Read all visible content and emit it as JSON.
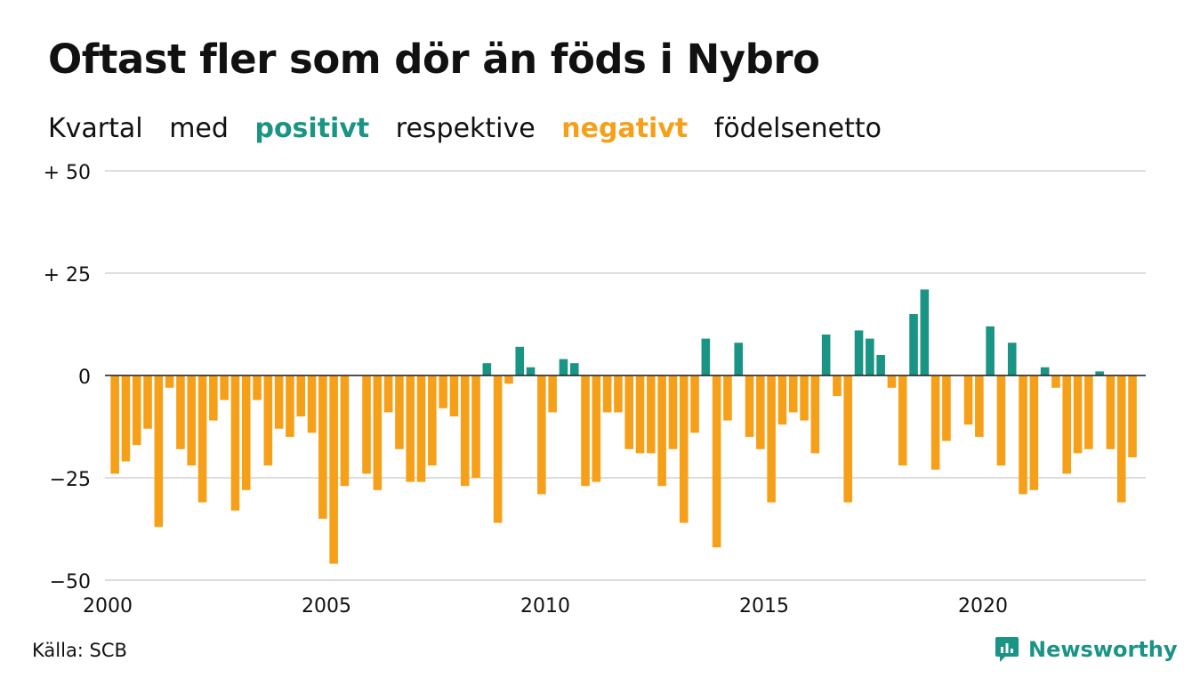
{
  "header": {
    "title": "Oftast fler som dör än föds i Nybro",
    "subtitle_words": [
      "Kvartal",
      "med",
      "positivt",
      "respektive",
      "negativt",
      "födelsenetto"
    ]
  },
  "footer": {
    "source": "Källa: SCB",
    "brand": "Newsworthy",
    "brand_icon": "newsworthy-chart-icon"
  },
  "colors": {
    "positive": "#1a9484",
    "negative": "#f6a01a",
    "grid": "#dddddd",
    "text": "#111111"
  },
  "chart_data": {
    "type": "bar",
    "title": "Oftast fler som dör än föds i Nybro",
    "subtitle": "Kvartal med positivt respektive negativt födelsenetto",
    "xlabel": "",
    "ylabel": "",
    "ylim": [
      -50,
      50
    ],
    "y_ticks": [
      50,
      25,
      0,
      -25,
      -50
    ],
    "y_tick_labels": [
      "+ 50",
      "+ 25",
      "0",
      "−25",
      "−50"
    ],
    "x_ticks": [
      2000,
      2005,
      2010,
      2015,
      2020
    ],
    "x_tick_labels": [
      "2000",
      "2005",
      "2010",
      "2015",
      "2020"
    ],
    "x_start": 2000,
    "periods_per_year": 4,
    "grid": true,
    "legend": "none",
    "values": [
      -24,
      -21,
      -17,
      -13,
      -37,
      -3,
      -18,
      -22,
      -31,
      -11,
      -6,
      -33,
      -28,
      -6,
      -22,
      -13,
      -15,
      -10,
      -14,
      -35,
      -46,
      -27,
      0,
      -24,
      -28,
      -9,
      -18,
      -26,
      -26,
      -22,
      -8,
      -10,
      -27,
      -25,
      3,
      -36,
      -2,
      7,
      2,
      -29,
      -9,
      4,
      3,
      -27,
      -26,
      -9,
      -9,
      -18,
      -19,
      -19,
      -27,
      -18,
      -36,
      -14,
      9,
      -42,
      -11,
      8,
      -15,
      -18,
      -31,
      -12,
      -9,
      -11,
      -19,
      10,
      -5,
      -31,
      11,
      9,
      5,
      -3,
      -22,
      15,
      21,
      -23,
      -16,
      0,
      -12,
      -15,
      12,
      -22,
      8,
      -29,
      -28,
      2,
      -3,
      -24,
      -19,
      -18,
      1,
      -18,
      -31,
      -20
    ]
  }
}
